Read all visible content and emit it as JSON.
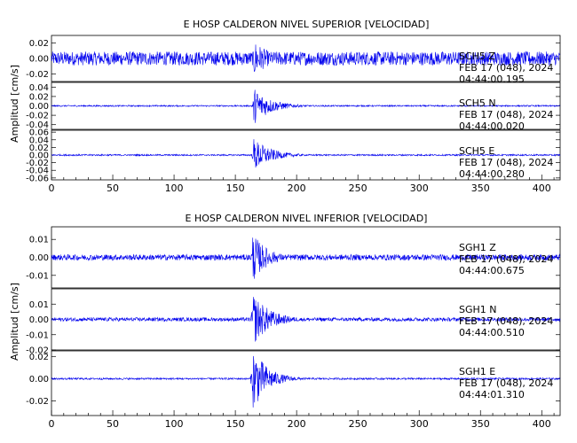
{
  "chart_data": [
    {
      "type": "line",
      "title": "E HOSP CALDERON NIVEL SUPERIOR [VELOCIDAD]",
      "ylabel": "Amplitud [cm/s]",
      "xlabel": "",
      "xlim": [
        0,
        415
      ],
      "x_ticks": [
        "0",
        "50",
        "100",
        "150",
        "200",
        "250",
        "300",
        "350",
        "400"
      ],
      "grid": false,
      "event_time_s": 165,
      "traces": [
        {
          "component": "SCH5 Z",
          "date_line": "FEB 17 (048), 2024",
          "time_line": "04:44:00.195",
          "ylim": [
            -0.03,
            0.03
          ],
          "y_ticks": [
            "0.02",
            "0.00",
            "-0.02"
          ],
          "background_amplitude": 0.009,
          "peak_amplitude": 0.026,
          "coda_decay_s": 12
        },
        {
          "component": "SCH5 N",
          "date_line": "FEB 17 (048), 2024",
          "time_line": "04:44:00.020",
          "ylim": [
            -0.05,
            0.05
          ],
          "y_ticks": [
            "0.04",
            "0.02",
            "0.00",
            "-0.02",
            "-0.04"
          ],
          "background_amplitude": 0.0015,
          "peak_amplitude": 0.04,
          "coda_decay_s": 14
        },
        {
          "component": "SCH5 E",
          "date_line": "FEB 17 (048), 2024",
          "time_line": "04:44:00.280",
          "ylim": [
            -0.065,
            0.065
          ],
          "y_ticks": [
            "0.06",
            "0.04",
            "0.02",
            "0.00",
            "-0.02",
            "-0.04",
            "-0.06"
          ],
          "background_amplitude": 0.002,
          "peak_amplitude": 0.045,
          "coda_decay_s": 14
        }
      ]
    },
    {
      "type": "line",
      "title": "E HOSP CALDERON NIVEL INFERIOR [VELOCIDAD]",
      "ylabel": "Amplitud [cm/s]",
      "xlabel": "",
      "xlim": [
        0,
        415
      ],
      "x_ticks": [
        "0",
        "50",
        "100",
        "150",
        "200",
        "250",
        "300",
        "350",
        "400"
      ],
      "grid": false,
      "event_time_s": 164,
      "traces": [
        {
          "component": "SGH1 Z",
          "date_line": "FEB 17 (048), 2024",
          "time_line": "04:44:00.675",
          "ylim": [
            -0.017,
            0.017
          ],
          "y_ticks": [
            "0.01",
            "0.00",
            "-0.01"
          ],
          "background_amplitude": 0.0016,
          "peak_amplitude": 0.014,
          "coda_decay_s": 12
        },
        {
          "component": "SGH1 N",
          "date_line": "FEB 17 (048), 2024",
          "time_line": "04:44:00.510",
          "ylim": [
            -0.02,
            0.02
          ],
          "y_ticks": [
            "0.01",
            "0.00",
            "-0.01",
            "-0.02"
          ],
          "background_amplitude": 0.0012,
          "peak_amplitude": 0.018,
          "coda_decay_s": 14
        },
        {
          "component": "SGH1 E",
          "date_line": "FEB 17 (048), 2024",
          "time_line": "04:44:01.310",
          "ylim": [
            -0.033,
            0.025
          ],
          "y_ticks": [
            "0.02",
            "0.00",
            "-0.02"
          ],
          "background_amplitude": 0.0008,
          "peak_amplitude": 0.03,
          "coda_decay_s": 12
        }
      ]
    }
  ]
}
